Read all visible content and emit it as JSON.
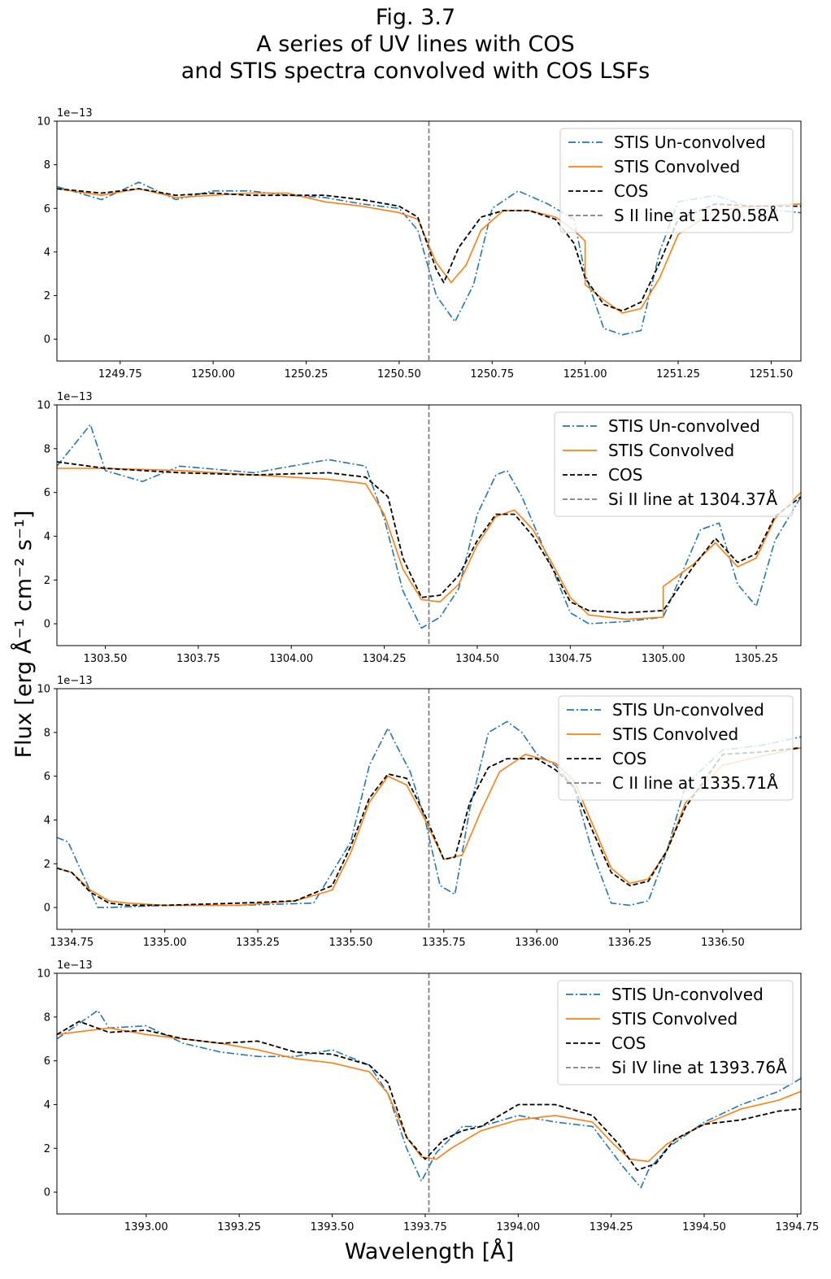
{
  "figure": {
    "title_lines": [
      "Fig. 3.7",
      "A series of UV lines with COS",
      "and STIS spectra convolved with COS LSFs"
    ],
    "ylabel": "Flux [erg Å⁻¹ cm⁻² s⁻¹]",
    "xlabel": "Wavelength [Å]"
  },
  "colors": {
    "stis_unconvolved": "#1f77b4",
    "stis_convolved": "#ff7f0e",
    "cos": "#000000",
    "line_marker": "#808080"
  },
  "chart_data": [
    {
      "type": "line",
      "xlim": [
        1249.58,
        1251.58
      ],
      "ylim": [
        -1,
        10
      ],
      "y_offset_label": "1e−13",
      "xticks": [
        1249.75,
        1250.0,
        1250.25,
        1250.5,
        1250.75,
        1251.0,
        1251.25,
        1251.5
      ],
      "xtick_labels": [
        "1249.75",
        "1250.00",
        "1250.25",
        "1250.50",
        "1250.75",
        "1251.00",
        "1251.25",
        "1251.50"
      ],
      "yticks": [
        0,
        2,
        4,
        6,
        8,
        10
      ],
      "ytick_labels": [
        "0",
        "2",
        "4",
        "6",
        "8",
        "10"
      ],
      "vline": 1250.58,
      "legend": [
        "STIS Un-convolved",
        "STIS Convolved",
        "COS",
        "S II line at 1250.58Å"
      ],
      "series": [
        {
          "name": "STIS Convolved",
          "x": [
            1249.58,
            1249.7,
            1249.8,
            1249.9,
            1250.0,
            1250.1,
            1250.2,
            1250.3,
            1250.4,
            1250.5,
            1250.55,
            1250.6,
            1250.64,
            1250.68,
            1250.72,
            1250.78,
            1250.85,
            1250.92,
            1250.97,
            1251.0,
            1251.0,
            1251.05,
            1251.1,
            1251.15,
            1251.2,
            1251.25,
            1251.35,
            1251.45,
            1251.58
          ],
          "values": [
            6.9,
            6.6,
            6.9,
            6.5,
            6.6,
            6.7,
            6.7,
            6.3,
            6.1,
            5.8,
            5.5,
            3.5,
            2.6,
            3.4,
            5.0,
            5.9,
            5.9,
            5.6,
            5.0,
            4.5,
            2.5,
            1.8,
            1.2,
            1.4,
            2.8,
            4.8,
            5.9,
            6.1,
            6.2
          ]
        },
        {
          "name": "COS",
          "x": [
            1249.58,
            1249.7,
            1249.8,
            1249.9,
            1250.0,
            1250.1,
            1250.2,
            1250.3,
            1250.4,
            1250.5,
            1250.55,
            1250.6,
            1250.62,
            1250.66,
            1250.72,
            1250.78,
            1250.85,
            1250.92,
            1250.97,
            1251.0,
            1251.05,
            1251.1,
            1251.15,
            1251.2,
            1251.25,
            1251.35,
            1251.45,
            1251.58
          ],
          "values": [
            6.9,
            6.7,
            6.9,
            6.6,
            6.7,
            6.6,
            6.6,
            6.6,
            6.4,
            6.1,
            5.6,
            3.2,
            2.6,
            4.2,
            5.6,
            5.9,
            5.9,
            5.5,
            4.4,
            2.8,
            1.6,
            1.3,
            1.7,
            3.5,
            5.5,
            6.2,
            6.1,
            6.1
          ]
        },
        {
          "name": "STIS Un-convolved",
          "x": [
            1249.58,
            1249.7,
            1249.8,
            1249.9,
            1250.0,
            1250.1,
            1250.2,
            1250.3,
            1250.4,
            1250.5,
            1250.55,
            1250.6,
            1250.65,
            1250.7,
            1250.75,
            1250.82,
            1250.9,
            1250.97,
            1251.0,
            1251.05,
            1251.1,
            1251.15,
            1251.2,
            1251.25,
            1251.35,
            1251.45,
            1251.58
          ],
          "values": [
            7.0,
            6.4,
            7.2,
            6.4,
            6.8,
            6.8,
            6.6,
            6.5,
            6.2,
            6.0,
            5.0,
            2.0,
            0.8,
            2.5,
            6.0,
            6.8,
            6.2,
            5.5,
            3.0,
            0.5,
            0.2,
            0.4,
            4.0,
            6.3,
            6.6,
            6.0,
            5.8
          ]
        }
      ]
    },
    {
      "type": "line",
      "xlim": [
        1303.37,
        1305.37
      ],
      "ylim": [
        -1,
        10
      ],
      "y_offset_label": "1e−13",
      "xticks": [
        1303.5,
        1303.75,
        1304.0,
        1304.25,
        1304.5,
        1304.75,
        1305.0,
        1305.25
      ],
      "xtick_labels": [
        "1303.50",
        "1303.75",
        "1304.00",
        "1304.25",
        "1304.50",
        "1304.75",
        "1305.00",
        "1305.25"
      ],
      "yticks": [
        0,
        2,
        4,
        6,
        8,
        10
      ],
      "ytick_labels": [
        "0",
        "2",
        "4",
        "6",
        "8",
        "10"
      ],
      "vline": 1304.37,
      "legend": [
        "STIS Un-convolved",
        "STIS Convolved",
        "COS",
        "Si II line at 1304.37Å"
      ],
      "series": [
        {
          "name": "STIS Convolved",
          "x": [
            1303.37,
            1303.5,
            1303.7,
            1303.9,
            1304.1,
            1304.2,
            1304.25,
            1304.3,
            1304.35,
            1304.4,
            1304.45,
            1304.5,
            1304.55,
            1304.6,
            1304.65,
            1304.7,
            1304.75,
            1304.8,
            1304.9,
            1305.0,
            1305.0,
            1305.08,
            1305.14,
            1305.2,
            1305.25,
            1305.3,
            1305.37
          ],
          "values": [
            7.1,
            7.1,
            7.0,
            6.8,
            6.6,
            6.4,
            5.0,
            2.5,
            1.1,
            1.0,
            1.8,
            3.6,
            4.9,
            5.2,
            4.3,
            2.8,
            1.2,
            0.4,
            0.2,
            0.3,
            1.7,
            2.7,
            3.7,
            2.6,
            3.0,
            4.8,
            6.0
          ]
        },
        {
          "name": "COS",
          "x": [
            1303.37,
            1303.5,
            1303.7,
            1303.9,
            1304.1,
            1304.2,
            1304.26,
            1304.3,
            1304.35,
            1304.4,
            1304.45,
            1304.5,
            1304.55,
            1304.6,
            1304.65,
            1304.7,
            1304.75,
            1304.8,
            1304.9,
            1305.0,
            1305.08,
            1305.14,
            1305.2,
            1305.25,
            1305.3,
            1305.37
          ],
          "values": [
            7.4,
            7.1,
            6.9,
            6.8,
            6.9,
            6.7,
            5.8,
            3.0,
            1.2,
            1.3,
            2.2,
            3.8,
            5.0,
            5.0,
            4.0,
            2.6,
            1.0,
            0.6,
            0.5,
            0.6,
            2.6,
            3.9,
            2.8,
            3.2,
            4.9,
            5.8
          ]
        },
        {
          "name": "STIS Un-convolved",
          "x": [
            1303.37,
            1303.46,
            1303.5,
            1303.6,
            1303.7,
            1303.9,
            1304.1,
            1304.2,
            1304.25,
            1304.3,
            1304.35,
            1304.4,
            1304.45,
            1304.5,
            1304.55,
            1304.58,
            1304.62,
            1304.66,
            1304.7,
            1304.75,
            1304.8,
            1304.9,
            1305.0,
            1305.1,
            1305.15,
            1305.2,
            1305.25,
            1305.3,
            1305.37
          ],
          "values": [
            7.2,
            9.1,
            7.0,
            6.5,
            7.2,
            6.9,
            7.5,
            7.2,
            4.8,
            1.5,
            -0.2,
            0.3,
            1.6,
            5.0,
            6.8,
            7.0,
            5.8,
            4.2,
            2.6,
            0.5,
            0.0,
            0.1,
            0.3,
            4.3,
            4.6,
            1.8,
            0.8,
            3.8,
            5.8
          ]
        }
      ]
    },
    {
      "type": "line",
      "xlim": [
        1334.71,
        1336.71
      ],
      "ylim": [
        -1,
        10
      ],
      "y_offset_label": "1e−13",
      "xticks": [
        1334.75,
        1335.0,
        1335.25,
        1335.5,
        1335.75,
        1336.0,
        1336.25,
        1336.5
      ],
      "xtick_labels": [
        "1334.75",
        "1335.00",
        "1335.25",
        "1335.50",
        "1335.75",
        "1336.00",
        "1336.25",
        "1336.50"
      ],
      "yticks": [
        0,
        2,
        4,
        6,
        8,
        10
      ],
      "ytick_labels": [
        "0",
        "2",
        "4",
        "6",
        "8",
        "10"
      ],
      "vline": 1335.71,
      "legend": [
        "STIS Un-convolved",
        "STIS Convolved",
        "COS",
        "C II line at 1335.71Å"
      ],
      "series": [
        {
          "name": "STIS Convolved",
          "x": [
            1334.71,
            1334.75,
            1334.8,
            1334.85,
            1334.9,
            1335.0,
            1335.2,
            1335.35,
            1335.45,
            1335.5,
            1335.55,
            1335.6,
            1335.65,
            1335.7,
            1335.75,
            1335.8,
            1335.85,
            1335.9,
            1335.97,
            1336.05,
            1336.1,
            1336.15,
            1336.2,
            1336.25,
            1336.3,
            1336.35,
            1336.4,
            1336.5,
            1336.6,
            1336.71
          ],
          "values": [
            1.8,
            1.6,
            0.8,
            0.3,
            0.2,
            0.1,
            0.1,
            0.3,
            0.8,
            2.5,
            4.8,
            6.0,
            5.6,
            4.0,
            2.2,
            2.4,
            4.4,
            6.2,
            7.0,
            6.6,
            5.8,
            3.8,
            1.8,
            1.1,
            1.3,
            2.6,
            4.8,
            6.5,
            6.9,
            7.3
          ]
        },
        {
          "name": "COS",
          "x": [
            1334.71,
            1334.75,
            1334.8,
            1334.85,
            1334.9,
            1335.0,
            1335.2,
            1335.35,
            1335.45,
            1335.5,
            1335.55,
            1335.6,
            1335.65,
            1335.7,
            1335.75,
            1335.78,
            1335.82,
            1335.87,
            1335.92,
            1336.0,
            1336.05,
            1336.1,
            1336.15,
            1336.2,
            1336.25,
            1336.3,
            1336.35,
            1336.4,
            1336.5,
            1336.6,
            1336.71
          ],
          "values": [
            1.8,
            1.6,
            0.7,
            0.2,
            0.1,
            0.1,
            0.2,
            0.3,
            1.0,
            2.8,
            5.0,
            6.1,
            5.9,
            4.2,
            2.2,
            2.3,
            4.8,
            6.4,
            6.8,
            6.8,
            6.3,
            5.5,
            3.5,
            1.6,
            1.0,
            1.2,
            2.6,
            4.6,
            7.0,
            7.1,
            7.3
          ]
        },
        {
          "name": "STIS Un-convolved",
          "x": [
            1334.71,
            1334.74,
            1334.78,
            1334.82,
            1334.85,
            1335.0,
            1335.2,
            1335.4,
            1335.5,
            1335.55,
            1335.6,
            1335.62,
            1335.66,
            1335.7,
            1335.74,
            1335.78,
            1335.82,
            1335.87,
            1335.92,
            1335.96,
            1336.0,
            1336.05,
            1336.1,
            1336.15,
            1336.2,
            1336.25,
            1336.3,
            1336.35,
            1336.4,
            1336.5,
            1336.6,
            1336.71
          ],
          "values": [
            3.2,
            3.0,
            1.5,
            0.0,
            0.0,
            0.1,
            0.1,
            0.2,
            3.0,
            6.5,
            8.2,
            7.5,
            6.2,
            4.0,
            1.0,
            0.6,
            4.5,
            8.0,
            8.5,
            8.0,
            7.0,
            6.5,
            5.5,
            2.5,
            0.2,
            0.1,
            0.3,
            2.6,
            5.6,
            7.2,
            7.4,
            7.8
          ]
        }
      ]
    },
    {
      "type": "line",
      "xlim": [
        1392.76,
        1394.76
      ],
      "ylim": [
        -1,
        10
      ],
      "y_offset_label": "1e−13",
      "xticks": [
        1393.0,
        1393.25,
        1393.5,
        1393.75,
        1394.0,
        1394.25,
        1394.5,
        1394.75
      ],
      "xtick_labels": [
        "1393.00",
        "1393.25",
        "1393.50",
        "1393.75",
        "1394.00",
        "1394.25",
        "1394.50",
        "1394.75"
      ],
      "yticks": [
        0,
        2,
        4,
        6,
        8,
        10
      ],
      "ytick_labels": [
        "0",
        "2",
        "4",
        "6",
        "8",
        "10"
      ],
      "vline": 1393.76,
      "legend": [
        "STIS Un-convolved",
        "STIS Convolved",
        "COS",
        "Si IV line at 1393.76Å"
      ],
      "series": [
        {
          "name": "STIS Convolved",
          "x": [
            1392.76,
            1392.9,
            1393.0,
            1393.1,
            1393.2,
            1393.3,
            1393.4,
            1393.5,
            1393.6,
            1393.65,
            1393.7,
            1393.74,
            1393.78,
            1393.82,
            1393.9,
            1394.0,
            1394.1,
            1394.2,
            1394.25,
            1394.3,
            1394.35,
            1394.4,
            1394.5,
            1394.6,
            1394.7,
            1394.76
          ],
          "values": [
            7.2,
            7.5,
            7.2,
            7.0,
            6.8,
            6.5,
            6.1,
            5.9,
            5.5,
            4.5,
            2.5,
            1.6,
            1.5,
            2.0,
            2.8,
            3.3,
            3.5,
            3.2,
            2.3,
            1.5,
            1.4,
            2.2,
            3.1,
            3.8,
            4.2,
            4.6
          ]
        },
        {
          "name": "COS",
          "x": [
            1392.76,
            1392.82,
            1392.9,
            1393.0,
            1393.1,
            1393.2,
            1393.3,
            1393.4,
            1393.5,
            1393.6,
            1393.65,
            1393.7,
            1393.75,
            1393.8,
            1393.85,
            1393.9,
            1394.0,
            1394.1,
            1394.2,
            1394.27,
            1394.32,
            1394.37,
            1394.42,
            1394.5,
            1394.6,
            1394.7,
            1394.76
          ],
          "values": [
            7.2,
            7.8,
            7.3,
            7.4,
            7.0,
            6.8,
            6.9,
            6.4,
            6.3,
            5.8,
            5.0,
            2.5,
            1.5,
            2.4,
            2.8,
            3.0,
            4.0,
            4.0,
            3.5,
            2.2,
            1.0,
            1.3,
            2.4,
            3.1,
            3.3,
            3.7,
            3.8
          ]
        },
        {
          "name": "STIS Un-convolved",
          "x": [
            1392.76,
            1392.87,
            1392.9,
            1393.0,
            1393.1,
            1393.2,
            1393.3,
            1393.4,
            1393.5,
            1393.6,
            1393.65,
            1393.7,
            1393.74,
            1393.78,
            1393.85,
            1393.9,
            1394.0,
            1394.1,
            1394.2,
            1394.28,
            1394.33,
            1394.35,
            1394.4,
            1394.5,
            1394.6,
            1394.7,
            1394.76
          ],
          "values": [
            7.0,
            8.3,
            7.5,
            7.6,
            6.8,
            6.4,
            6.2,
            6.2,
            6.5,
            5.8,
            4.5,
            2.0,
            0.5,
            1.8,
            3.0,
            3.0,
            3.5,
            3.2,
            3.0,
            1.2,
            0.2,
            1.0,
            2.0,
            3.2,
            4.0,
            4.6,
            5.2
          ]
        }
      ]
    }
  ]
}
